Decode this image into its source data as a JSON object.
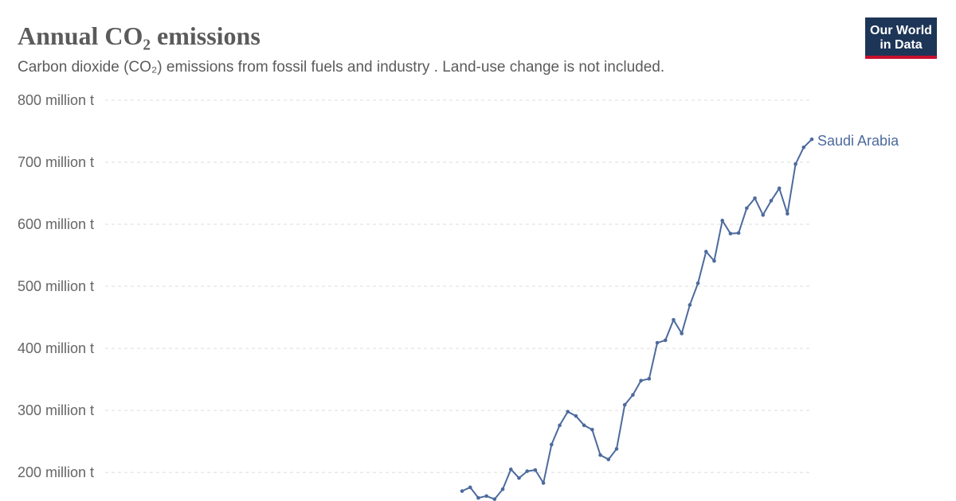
{
  "chart_data": {
    "type": "line",
    "title": "Annual CO₂ emissions",
    "subtitle": "Carbon dioxide (CO₂) emissions from fossil fuels and industry . Land-use change is not included.",
    "logo": [
      "Our World",
      "in Data"
    ],
    "ylim": [
      154,
      800
    ],
    "yticks": [
      {
        "value": 200,
        "label": "200 million t"
      },
      {
        "value": 300,
        "label": "300 million t"
      },
      {
        "value": 400,
        "label": "400 million t"
      },
      {
        "value": 500,
        "label": "500 million t"
      },
      {
        "value": 600,
        "label": "600 million t"
      },
      {
        "value": 700,
        "label": "700 million t"
      },
      {
        "value": 800,
        "label": "800 million t"
      }
    ],
    "grid": true,
    "series": [
      {
        "name": "Saudi Arabia",
        "color": "#4c6a9c",
        "values": [
          170,
          176,
          159,
          162,
          157,
          173,
          205,
          191,
          202,
          204,
          183,
          245,
          276,
          298,
          291,
          276,
          269,
          228,
          221,
          238,
          309,
          325,
          348,
          351,
          409,
          413,
          446,
          424,
          470,
          505,
          556,
          541,
          606,
          585,
          586,
          626,
          642,
          615,
          638,
          658,
          617,
          697,
          724,
          737
        ]
      }
    ]
  }
}
